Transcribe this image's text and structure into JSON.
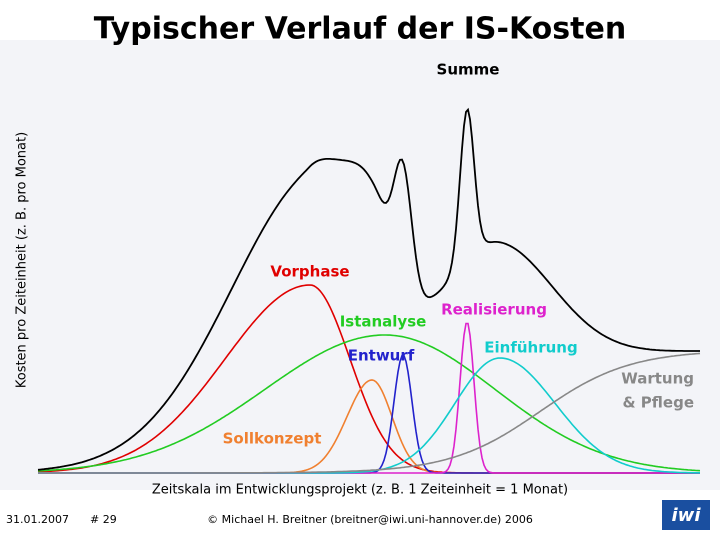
{
  "header": {
    "title": "Typischer Verlauf der IS-Kosten"
  },
  "diagram": {
    "y_axis_label": "Kosten pro Zeiteinheit (z. B. pro Monat)",
    "x_axis_label": "Zeitskala im Entwicklungsprojekt (z. B. 1 Zeiteinheit = 1 Monat)",
    "curve_labels": {
      "summe": "Summe",
      "vorphase": "Vorphase",
      "istanalyse": "Istanalyse",
      "realisierung": "Realisierung",
      "entwurf": "Entwurf",
      "einfuehrung": "Einführung",
      "wartung_1": "Wartung",
      "wartung_2": "& Pflege",
      "sollkonzept": "Sollkonzept"
    }
  },
  "footer": {
    "date": "31.01.2007",
    "slide": "# 29",
    "copyright": "© Michael H. Breitner (breitner@iwi.uni-hannover.de) 2006",
    "logo": "iwi"
  }
}
